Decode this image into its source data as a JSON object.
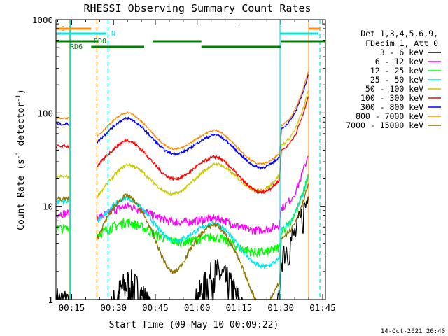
{
  "chart_data": {
    "type": "line",
    "title": "RHESSI Observing Summary Count Rates",
    "xlabel": "Start Time (09-May-10 00:09:22)",
    "ylabel_main": "Count Rate (s",
    "ylabel_sup1": "-1",
    "ylabel_mid": " detector",
    "ylabel_sup2": "-1",
    "ylabel_end": ")",
    "yscale": "log",
    "xlim_minutes": [
      9.37,
      106
    ],
    "ylim": [
      1,
      1000
    ],
    "x_ticks": [
      {
        "label": "00:15",
        "value": 15
      },
      {
        "label": "00:30",
        "value": 30
      },
      {
        "label": "00:45",
        "value": 45
      },
      {
        "label": "01:00",
        "value": 60
      },
      {
        "label": "01:15",
        "value": 75
      },
      {
        "label": "01:30",
        "value": 90
      },
      {
        "label": "01:45",
        "value": 105
      }
    ],
    "y_ticks": [
      {
        "label": "1",
        "value": 1
      },
      {
        "label": "10",
        "value": 10
      },
      {
        "label": "100",
        "value": 100
      },
      {
        "label": "1000",
        "value": 1000
      }
    ],
    "legend_header": [
      "Det 1,3,4,5,6,9,",
      "FDecim 1, Att 0"
    ],
    "legend_placement": "right",
    "series": [
      {
        "name": "3 - 6 keV",
        "color": "#000000",
        "start": 1.2,
        "end": 3.0,
        "dip_depth": 0.9,
        "noise": 0.45
      },
      {
        "name": "6 - 12 keV",
        "color": "#ff00ff",
        "start": 10.5,
        "end": 8.5,
        "dip_depth": 0.25,
        "noise": 0.1
      },
      {
        "name": "12 - 25 keV",
        "color": "#00ff00",
        "start": 7.2,
        "end": 5.0,
        "dip_depth": 0.28,
        "noise": 0.12
      },
      {
        "name": "25 - 50 keV",
        "color": "#00e5e5",
        "start": 14.0,
        "end": 5.0,
        "dip_depth": 0.55,
        "noise": 0.06
      },
      {
        "name": "50 - 100 keV",
        "color": "#c8c800",
        "start": 26.0,
        "end": 40.0,
        "dip_depth": 0.55,
        "noise": 0.04
      },
      {
        "name": "100 - 300 keV",
        "color": "#ff0000",
        "start": 55.0,
        "end": 35.0,
        "dip_depth": 0.55,
        "noise": 0.04
      },
      {
        "name": "300 - 800 keV",
        "color": "#0000ff",
        "start": 95.0,
        "end": 60.0,
        "dip_depth": 0.52,
        "noise": 0.03
      },
      {
        "name": "800 - 7000 keV",
        "color": "#ff8c00",
        "start": 110.0,
        "end": 65.0,
        "dip_depth": 0.52,
        "noise": 0.02
      },
      {
        "name": "7000 - 15000 keV",
        "color": "#8b7500",
        "start": 15.0,
        "end": 4.0,
        "dip_depth": 0.8,
        "noise": 0.06
      }
    ],
    "gaps_minutes": [
      {
        "start": 9.37,
        "end": 14.2,
        "pre": true
      },
      {
        "start": 14.2,
        "end": 24.0
      }
    ],
    "observing_windows_minutes": [
      [
        24.0,
        89.7
      ]
    ],
    "flag_labels": {
      "S": "S",
      "N": "N",
      "RD0": "RD0",
      "RD6": "RD6"
    },
    "flag_bars": [
      {
        "label": "S",
        "color": "#ff8c00",
        "ranges": [
          [
            9.37,
            14.5
          ],
          [
            14.5,
            22.0
          ],
          [
            100.0,
            104.0
          ]
        ]
      },
      {
        "label": "N",
        "color": "#00e5e5",
        "ranges": [
          [
            9.37,
            27.5
          ],
          [
            89.7,
            103.5
          ]
        ]
      },
      {
        "label": "RD0",
        "color": "#008000",
        "ranges": [
          [
            9.37,
            24.5
          ],
          [
            44.0,
            61.5
          ],
          [
            90.0,
            106.0
          ]
        ]
      },
      {
        "label": "RD6",
        "color": "#008000",
        "ranges": [
          [
            22.0,
            41.0
          ],
          [
            61.5,
            90.0
          ]
        ]
      }
    ],
    "vertical_markers_minutes": [
      {
        "value": 14.2,
        "color": "#ff8c00",
        "style": "solid"
      },
      {
        "value": 14.5,
        "color": "#00e5e5",
        "style": "solid"
      },
      {
        "value": 24.0,
        "color": "#ff8c00",
        "style": "dashed"
      },
      {
        "value": 28.0,
        "color": "#00e5e5",
        "style": "dashed"
      },
      {
        "value": 89.7,
        "color": "#00e5e5",
        "style": "solid"
      },
      {
        "value": 100.0,
        "color": "#ff8c00",
        "style": "solid"
      },
      {
        "value": 104.0,
        "color": "#00e5e5",
        "style": "dashed"
      }
    ],
    "footer_timestamp": "14-Oct-2021 20:40"
  }
}
